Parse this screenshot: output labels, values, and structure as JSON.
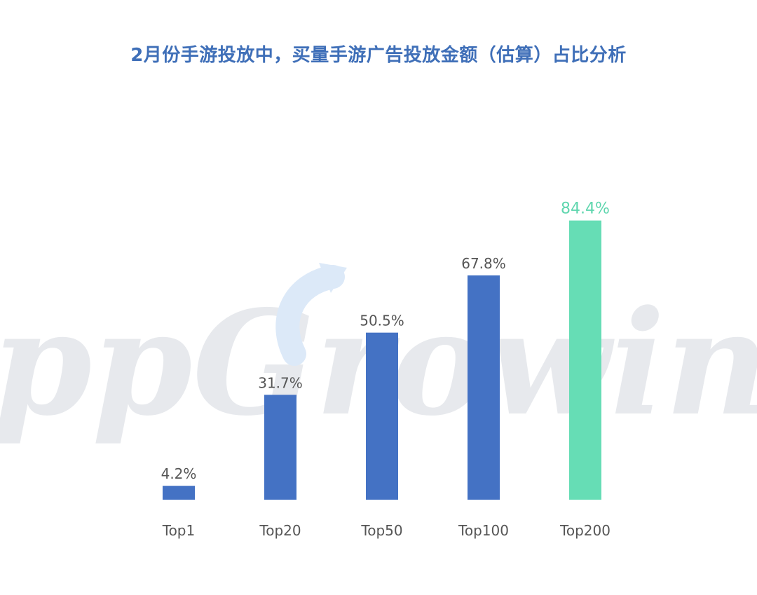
{
  "chart_data": {
    "type": "bar",
    "title": "2月份手游投放中，买量手游广告投放金额（估算）占比分析",
    "categories": [
      "Top1",
      "Top20",
      "Top50",
      "Top100",
      "Top200"
    ],
    "values": [
      4.2,
      31.7,
      50.5,
      67.8,
      84.4
    ],
    "value_labels": [
      "4.2%",
      "31.7%",
      "50.5%",
      "67.8%",
      "84.4%"
    ],
    "value_unit": "%",
    "xlabel": "",
    "ylabel": "",
    "ylim": [
      0,
      100
    ],
    "grid": false,
    "legend": "none",
    "colors": {
      "bar": "#4472c4",
      "highlight_bar": "#66ddb5",
      "highlight_label": "#5fd6ae",
      "label": "#555555",
      "title": "#3f6fb8"
    },
    "highlight_index": 4
  },
  "watermark": {
    "text": "AppGrowing"
  }
}
